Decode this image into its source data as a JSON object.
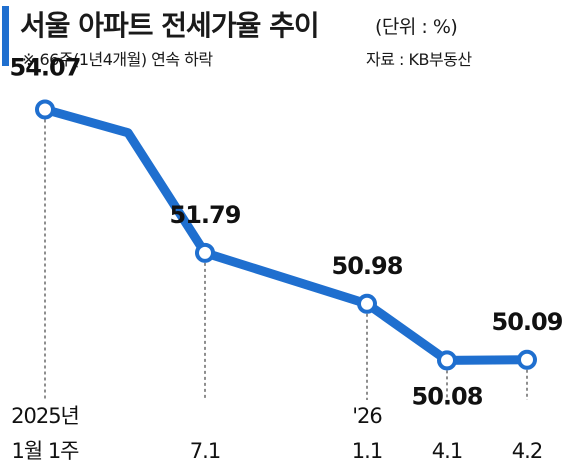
{
  "header": {
    "title": "서울 아파트 전세가율 추이",
    "unit": "(단위 : %)",
    "note": "※ 66주(1년4개월) 연속 하락",
    "source": "자료 : KB부동산"
  },
  "colors": {
    "line": "#1f6fcf",
    "accent": "#1f6fcf",
    "marker_fill": "#ffffff"
  },
  "chart_data": {
    "type": "line",
    "title": "서울 아파트 전세가율 추이",
    "unit": "%",
    "grid": false,
    "legend": "none",
    "ylim": [
      49.8,
      54.3
    ],
    "points": [
      {
        "x": "2025년 1월 1주",
        "y": 54.07,
        "label": "54.07",
        "marker": true,
        "tick": [
          "2025년",
          "1월 1주"
        ]
      },
      {
        "y": 53.7,
        "marker": false
      },
      {
        "x": "7.1",
        "y": 51.79,
        "label": "51.79",
        "marker": true,
        "tick": [
          "",
          "7.1"
        ]
      },
      {
        "x": "'26 1.1",
        "y": 50.98,
        "label": "50.98",
        "marker": true,
        "tick": [
          "'26",
          "1.1"
        ]
      },
      {
        "x": "4.1",
        "y": 50.08,
        "label": "50.08",
        "marker": true,
        "tick": [
          "",
          "4.1"
        ]
      },
      {
        "x": "4.2",
        "y": 50.09,
        "label": "50.09",
        "marker": true,
        "tick": [
          "",
          "4.2"
        ]
      }
    ]
  }
}
